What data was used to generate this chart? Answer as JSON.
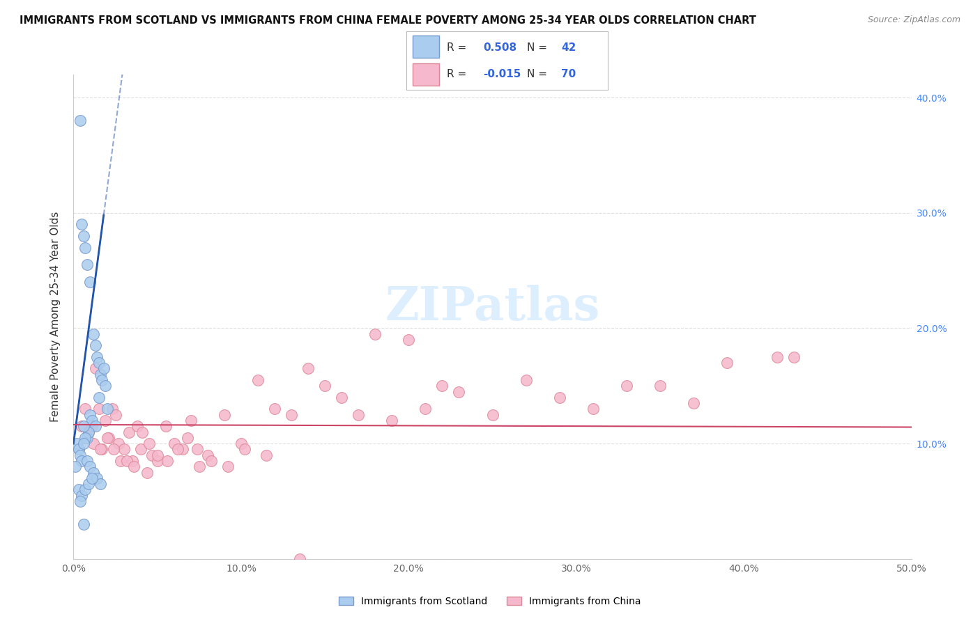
{
  "title": "IMMIGRANTS FROM SCOTLAND VS IMMIGRANTS FROM CHINA FEMALE POVERTY AMONG 25-34 YEAR OLDS CORRELATION CHART",
  "source": "Source: ZipAtlas.com",
  "ylabel": "Female Poverty Among 25-34 Year Olds",
  "xlim": [
    0,
    0.5
  ],
  "ylim": [
    0.0,
    0.42
  ],
  "xticks": [
    0.0,
    0.1,
    0.2,
    0.3,
    0.4,
    0.5
  ],
  "xticklabels": [
    "0.0%",
    "10.0%",
    "20.0%",
    "30.0%",
    "40.0%",
    "50.0%"
  ],
  "yticks_right": [
    0.1,
    0.2,
    0.3,
    0.4
  ],
  "yticklabels_right": [
    "10.0%",
    "20.0%",
    "30.0%",
    "40.0%"
  ],
  "scotland_color": "#aaccee",
  "scotland_edge": "#7799cc",
  "china_color": "#f5b8cc",
  "china_edge": "#dd8899",
  "scotland_R": 0.508,
  "scotland_N": 42,
  "china_R": -0.015,
  "china_N": 70,
  "scotland_line_color": "#2255aa",
  "china_line_color": "#cc4466",
  "legend_r_color": "#3366dd",
  "watermark_color": "#ddeeff",
  "scotland_x": [
    0.004,
    0.003,
    0.006,
    0.005,
    0.007,
    0.008,
    0.01,
    0.012,
    0.013,
    0.014,
    0.015,
    0.016,
    0.017,
    0.018,
    0.019,
    0.02,
    0.01,
    0.011,
    0.013,
    0.015,
    0.008,
    0.009,
    0.006,
    0.007,
    0.002,
    0.003,
    0.004,
    0.005,
    0.001,
    0.006,
    0.008,
    0.01,
    0.012,
    0.014,
    0.016,
    0.003,
    0.005,
    0.007,
    0.009,
    0.011,
    0.004,
    0.006
  ],
  "scotland_y": [
    0.38,
    0.095,
    0.28,
    0.29,
    0.27,
    0.255,
    0.24,
    0.195,
    0.185,
    0.175,
    0.17,
    0.16,
    0.155,
    0.165,
    0.15,
    0.13,
    0.125,
    0.12,
    0.115,
    0.14,
    0.105,
    0.11,
    0.115,
    0.105,
    0.1,
    0.095,
    0.09,
    0.085,
    0.08,
    0.1,
    0.085,
    0.08,
    0.075,
    0.07,
    0.065,
    0.06,
    0.055,
    0.06,
    0.065,
    0.07,
    0.05,
    0.03
  ],
  "china_x": [
    0.005,
    0.007,
    0.009,
    0.011,
    0.013,
    0.015,
    0.017,
    0.019,
    0.021,
    0.023,
    0.025,
    0.027,
    0.03,
    0.033,
    0.035,
    0.038,
    0.041,
    0.044,
    0.047,
    0.05,
    0.055,
    0.06,
    0.065,
    0.07,
    0.075,
    0.08,
    0.09,
    0.1,
    0.11,
    0.12,
    0.13,
    0.14,
    0.15,
    0.16,
    0.17,
    0.18,
    0.19,
    0.2,
    0.21,
    0.22,
    0.23,
    0.25,
    0.27,
    0.29,
    0.31,
    0.33,
    0.35,
    0.37,
    0.39,
    0.42,
    0.012,
    0.016,
    0.02,
    0.024,
    0.028,
    0.032,
    0.036,
    0.04,
    0.045,
    0.05,
    0.056,
    0.062,
    0.068,
    0.074,
    0.082,
    0.092,
    0.102,
    0.115,
    0.43,
    0.135
  ],
  "china_y": [
    0.115,
    0.13,
    0.11,
    0.115,
    0.165,
    0.13,
    0.095,
    0.12,
    0.105,
    0.13,
    0.125,
    0.1,
    0.095,
    0.11,
    0.085,
    0.115,
    0.11,
    0.075,
    0.09,
    0.085,
    0.115,
    0.1,
    0.095,
    0.12,
    0.08,
    0.09,
    0.125,
    0.1,
    0.155,
    0.13,
    0.125,
    0.165,
    0.15,
    0.14,
    0.125,
    0.195,
    0.12,
    0.19,
    0.13,
    0.15,
    0.145,
    0.125,
    0.155,
    0.14,
    0.13,
    0.15,
    0.15,
    0.135,
    0.17,
    0.175,
    0.1,
    0.095,
    0.105,
    0.095,
    0.085,
    0.085,
    0.08,
    0.095,
    0.1,
    0.09,
    0.085,
    0.095,
    0.105,
    0.095,
    0.085,
    0.08,
    0.095,
    0.09,
    0.175,
    0.0
  ]
}
